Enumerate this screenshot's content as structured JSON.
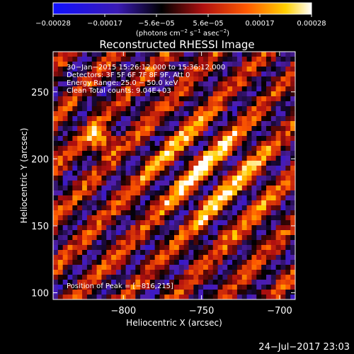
{
  "chart_data": {
    "type": "heatmap",
    "title": "Reconstructed RHESSI Image",
    "xlabel": "Heliocentric X (arcsec)",
    "ylabel": "Heliocentric Y (arcsec)",
    "xlim": [
      -845,
      -690
    ],
    "ylim": [
      95,
      280
    ],
    "x_ticks": [
      -800,
      -750,
      -700
    ],
    "x_tick_labels": [
      "−800",
      "−750",
      "−700"
    ],
    "y_ticks": [
      100,
      150,
      200,
      250
    ],
    "y_tick_labels": [
      "100",
      "150",
      "200",
      "250"
    ],
    "colorbar": {
      "range": [
        -0.00028,
        0.00028
      ],
      "tick_labels": [
        "−0.00028",
        "−0.00017",
        "−5.6e−05",
        "5.6e−05",
        "0.00017",
        "0.00028"
      ],
      "unit_base": "(photons cm",
      "unit_exp1": "−2",
      "unit_mid": " s",
      "unit_exp2": "−1",
      "unit_mid2": " asec",
      "unit_exp3": "−2",
      "unit_end": ")"
    },
    "peak": {
      "x": -816,
      "y": 215
    },
    "colors": [
      "#0000ff",
      "#5a1aa8",
      "#000000",
      "#b01010",
      "#ff6a00",
      "#ffd200",
      "#ffffff"
    ]
  },
  "annotations": {
    "line1": "30−Jan−2015 15:26:12.000 to 15:36:12.000",
    "line2": "Detectors: 3F 5F 6F 7F 8F 9F, Att 0",
    "line3": "Energy Range: 25.0 − 50.0 keV",
    "line4": "Clean    Total counts: 9.04E+03",
    "peak": "Position of Peak = [−816,215]"
  },
  "footer": {
    "timestamp": "24−Jul−2017 23:03"
  }
}
